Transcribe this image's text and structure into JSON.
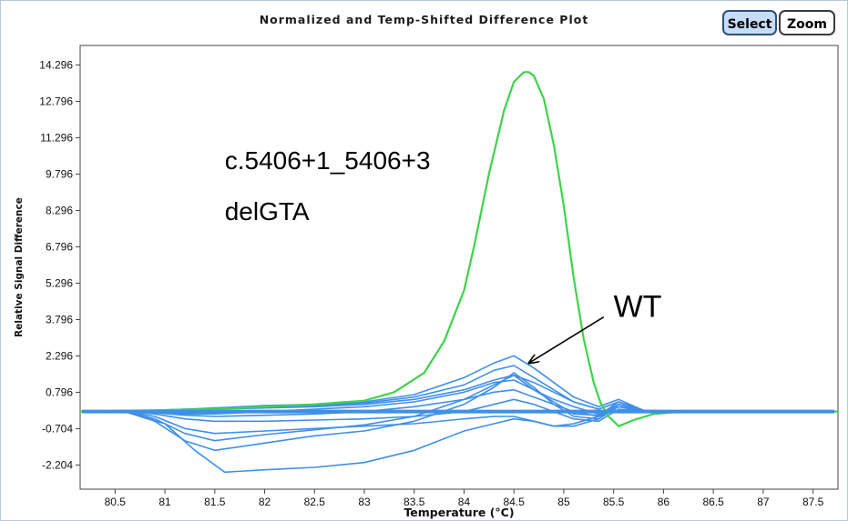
{
  "toolbar": {
    "select_label": "Select",
    "zoom_label": "Zoom"
  },
  "chart_data": {
    "type": "line",
    "title": "Normalized and Temp-Shifted Difference Plot",
    "xlabel": "Temperature (°C)",
    "ylabel": "Relative Signal Difference",
    "xlim": [
      80.15,
      87.75
    ],
    "ylim": [
      -3.2,
      15.1
    ],
    "x_ticks": [
      "80.5",
      "81",
      "81.5",
      "82",
      "82.5",
      "83",
      "83.5",
      "84",
      "84.5",
      "85",
      "85.5",
      "86",
      "86.5",
      "87",
      "87.5"
    ],
    "y_ticks": [
      "14.296",
      "12.796",
      "11.296",
      "9.796",
      "8.296",
      "6.796",
      "5.296",
      "3.796",
      "2.296",
      "0.796",
      "-0.704",
      "-2.204"
    ],
    "grid": false,
    "series": [
      {
        "color": "#3ed34a",
        "x": [
          80.15,
          81.5,
          82.5,
          83.0,
          83.3,
          83.6,
          83.8,
          84.0,
          84.1,
          84.25,
          84.4,
          84.5,
          84.6,
          84.65,
          84.7,
          84.8,
          84.9,
          85.0,
          85.1,
          85.2,
          85.3,
          85.37,
          85.45,
          85.55,
          85.7,
          85.9,
          86.2,
          87.0,
          87.75
        ],
        "y": [
          0.0,
          0.1,
          0.3,
          0.45,
          0.8,
          1.6,
          2.9,
          5.0,
          6.8,
          9.8,
          12.4,
          13.6,
          14.0,
          14.0,
          13.85,
          12.9,
          11.0,
          8.5,
          5.5,
          3.0,
          1.2,
          0.35,
          -0.2,
          -0.6,
          -0.35,
          -0.1,
          0.0,
          0.0,
          0.0
        ]
      },
      {
        "color": "#3f8fe8",
        "x": [
          80.15,
          80.6,
          80.9,
          81.2,
          81.5,
          82.0,
          82.5,
          83.0,
          83.5,
          84.0,
          84.3,
          84.5,
          84.7,
          84.9,
          85.1,
          85.35,
          85.55,
          85.8,
          86.2,
          87.75
        ],
        "y": [
          0.0,
          0.0,
          -0.3,
          -0.9,
          -1.2,
          -0.95,
          -0.75,
          -0.55,
          -0.2,
          0.5,
          1.1,
          1.5,
          0.9,
          0.4,
          -0.1,
          -0.15,
          0.4,
          0.05,
          0.0,
          0.0
        ]
      },
      {
        "color": "#3f8fe8",
        "x": [
          80.15,
          80.6,
          80.9,
          81.2,
          81.5,
          82.0,
          82.5,
          83.0,
          83.5,
          84.0,
          84.3,
          84.5,
          84.7,
          84.9,
          85.1,
          85.35,
          85.55,
          85.8,
          86.2,
          87.75
        ],
        "y": [
          0.0,
          0.0,
          -0.4,
          -1.2,
          -1.6,
          -1.3,
          -1.0,
          -0.8,
          -0.4,
          0.3,
          1.0,
          1.6,
          1.0,
          0.3,
          -0.2,
          -0.3,
          0.3,
          0.0,
          0.0,
          0.0
        ]
      },
      {
        "color": "#3f8fe8",
        "x": [
          80.15,
          80.6,
          81.0,
          81.3,
          81.6,
          82.0,
          82.5,
          83.0,
          83.5,
          84.0,
          84.3,
          84.5,
          84.7,
          84.9,
          85.1,
          85.35,
          85.55,
          85.8,
          86.2,
          87.75
        ],
        "y": [
          0.0,
          0.0,
          -0.5,
          -1.6,
          -2.5,
          -2.4,
          -2.3,
          -2.1,
          -1.6,
          -0.8,
          -0.5,
          -0.3,
          -0.4,
          -0.6,
          -0.6,
          -0.3,
          0.2,
          0.0,
          0.0,
          0.0
        ]
      },
      {
        "color": "#3f8fe8",
        "x": [
          80.15,
          80.6,
          80.9,
          81.2,
          81.5,
          82.0,
          82.5,
          83.0,
          83.5,
          84.0,
          84.3,
          84.5,
          84.7,
          84.9,
          85.1,
          85.35,
          85.55,
          85.8,
          86.2,
          87.75
        ],
        "y": [
          0.0,
          0.0,
          -0.2,
          -0.7,
          -0.9,
          -0.8,
          -0.7,
          -0.6,
          -0.5,
          -0.3,
          -0.2,
          -0.2,
          -0.4,
          -0.6,
          -0.5,
          -0.2,
          0.3,
          0.0,
          0.0,
          0.0
        ]
      },
      {
        "color": "#3f8fe8",
        "x": [
          80.15,
          80.6,
          80.9,
          81.2,
          81.5,
          82.0,
          82.5,
          83.0,
          83.5,
          84.0,
          84.3,
          84.5,
          84.7,
          84.9,
          85.1,
          85.35,
          85.55,
          85.8,
          86.2,
          87.75
        ],
        "y": [
          0.0,
          0.05,
          0.05,
          0.1,
          0.15,
          0.25,
          0.3,
          0.4,
          0.7,
          1.4,
          2.0,
          2.3,
          1.8,
          1.2,
          0.6,
          0.2,
          0.5,
          0.05,
          0.0,
          0.0
        ]
      },
      {
        "color": "#3f8fe8",
        "x": [
          80.15,
          80.6,
          80.9,
          81.2,
          81.5,
          82.0,
          82.5,
          83.0,
          83.5,
          84.0,
          84.3,
          84.5,
          84.7,
          84.9,
          85.1,
          85.35,
          85.55,
          85.8,
          86.2,
          87.75
        ],
        "y": [
          0.0,
          0.05,
          0.05,
          0.1,
          0.1,
          0.2,
          0.25,
          0.35,
          0.6,
          1.1,
          1.7,
          1.9,
          1.4,
          0.9,
          0.4,
          0.1,
          0.4,
          0.05,
          0.0,
          0.0
        ]
      },
      {
        "color": "#3f8fe8",
        "x": [
          80.15,
          80.6,
          80.9,
          81.2,
          81.5,
          82.0,
          82.5,
          83.0,
          83.5,
          84.0,
          84.3,
          84.5,
          84.7,
          84.9,
          85.1,
          85.35,
          85.55,
          85.8,
          86.2,
          87.75
        ],
        "y": [
          0.0,
          0.0,
          0.0,
          -0.1,
          -0.1,
          0.0,
          0.1,
          0.2,
          0.4,
          0.8,
          1.2,
          1.3,
          0.9,
          0.5,
          0.2,
          -0.1,
          0.3,
          0.0,
          0.0,
          0.0
        ]
      },
      {
        "color": "#3f8fe8",
        "x": [
          80.15,
          80.6,
          80.9,
          81.2,
          81.5,
          82.0,
          82.5,
          83.0,
          83.5,
          84.0,
          84.3,
          84.5,
          84.7,
          84.9,
          85.1,
          85.35,
          85.55,
          85.8,
          86.2,
          87.75
        ],
        "y": [
          0.0,
          0.0,
          -0.05,
          -0.15,
          -0.2,
          -0.15,
          -0.1,
          0.0,
          0.2,
          0.5,
          0.8,
          0.9,
          0.6,
          0.3,
          0.0,
          -0.2,
          0.2,
          0.0,
          0.0,
          0.0
        ]
      },
      {
        "color": "#3f8fe8",
        "x": [
          80.15,
          80.6,
          80.9,
          81.2,
          81.5,
          82.0,
          82.5,
          83.0,
          83.5,
          84.0,
          84.3,
          84.5,
          84.7,
          84.9,
          85.1,
          85.35,
          85.55,
          85.8,
          86.2,
          87.75
        ],
        "y": [
          0.0,
          0.0,
          -0.1,
          -0.3,
          -0.4,
          -0.4,
          -0.35,
          -0.3,
          -0.2,
          0.0,
          0.3,
          0.5,
          0.3,
          0.0,
          -0.3,
          -0.4,
          0.1,
          0.0,
          0.0,
          0.0
        ]
      },
      {
        "color": "#3f8fe8",
        "x": [
          80.15,
          80.6,
          80.9,
          81.2,
          81.5,
          82.0,
          82.5,
          83.0,
          83.5,
          84.0,
          84.3,
          84.5,
          84.7,
          84.9,
          85.1,
          85.35,
          85.55,
          85.8,
          86.2,
          87.75
        ],
        "y": [
          0.0,
          0.0,
          0.05,
          0.05,
          0.1,
          0.15,
          0.2,
          0.3,
          0.5,
          0.9,
          1.3,
          1.5,
          1.2,
          0.8,
          0.4,
          0.1,
          0.4,
          0.0,
          0.0,
          0.0
        ]
      }
    ],
    "annotations": [
      {
        "text": "c.5406+1_5406+3",
        "x": 81.6,
        "y": 10.0
      },
      {
        "text": "delGTA",
        "x": 81.6,
        "y": 7.9
      },
      {
        "text": "WT",
        "x": 85.5,
        "y": 3.9
      }
    ],
    "arrow": {
      "from": [
        85.4,
        3.9
      ],
      "to": [
        84.65,
        2.0
      ]
    }
  }
}
